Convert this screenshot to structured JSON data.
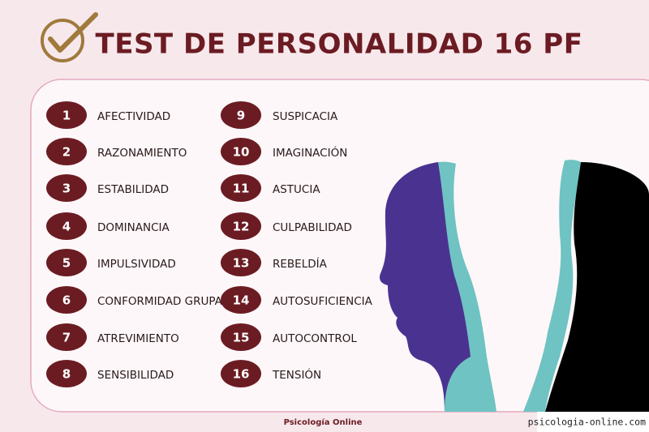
{
  "header": {
    "title": "TEST DE PERSONALIDAD 16 PF"
  },
  "factors": [
    {
      "number": 1,
      "label": "AFECTIVIDAD"
    },
    {
      "number": 2,
      "label": "RAZONAMIENTO"
    },
    {
      "number": 3,
      "label": "ESTABILIDAD"
    },
    {
      "number": 4,
      "label": "DOMINANCIA"
    },
    {
      "number": 5,
      "label": "IMPULSIVIDAD"
    },
    {
      "number": 6,
      "label": "CONFORMIDAD GRUPAL"
    },
    {
      "number": 7,
      "label": "ATREVIMIENTO"
    },
    {
      "number": 8,
      "label": "SENSIBILIDAD"
    },
    {
      "number": 9,
      "label": "SUSPICACIA"
    },
    {
      "number": 10,
      "label": "IMAGINACIÓN"
    },
    {
      "number": 11,
      "label": "ASTUCIA"
    },
    {
      "number": 12,
      "label": "CULPABILIDAD"
    },
    {
      "number": 13,
      "label": "REBELDÍA"
    },
    {
      "number": 14,
      "label": "AUTOSUFICIENCIA"
    },
    {
      "number": 15,
      "label": "AUTOCONTROL"
    },
    {
      "number": 16,
      "label": "TENSIÓN"
    }
  ],
  "footer": {
    "brand": "Psicología Online",
    "watermark": "psicologia-online.com"
  }
}
